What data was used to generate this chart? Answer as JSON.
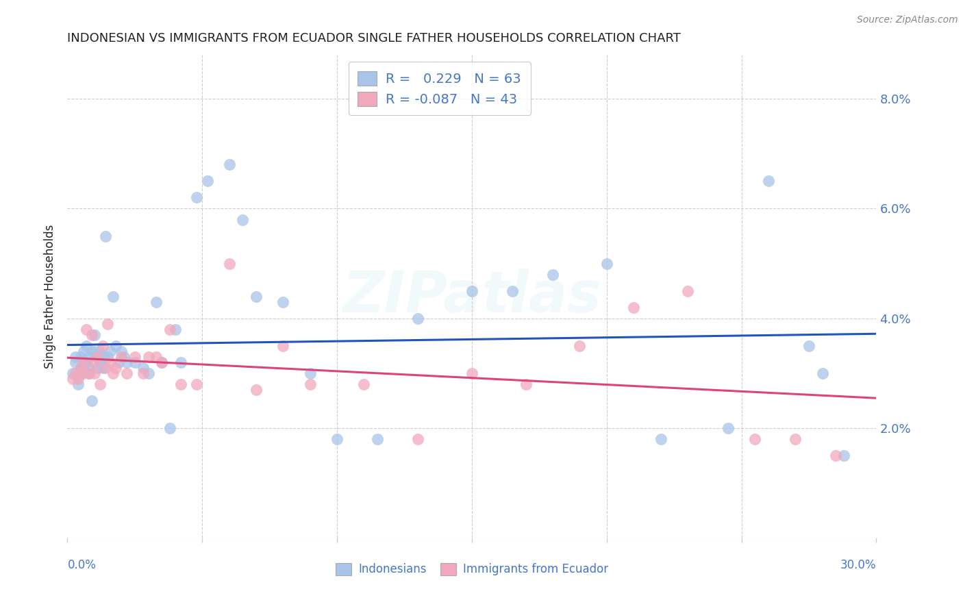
{
  "title": "INDONESIAN VS IMMIGRANTS FROM ECUADOR SINGLE FATHER HOUSEHOLDS CORRELATION CHART",
  "source": "Source: ZipAtlas.com",
  "ylabel": "Single Father Households",
  "yticks": [
    0.0,
    0.02,
    0.04,
    0.06,
    0.08
  ],
  "ytick_labels": [
    "",
    "2.0%",
    "4.0%",
    "6.0%",
    "8.0%"
  ],
  "xlim": [
    0.0,
    0.3
  ],
  "ylim": [
    0.0,
    0.088
  ],
  "blue_line_color": "#2255bb",
  "pink_line_color": "#dd4477",
  "blue_dot_color": "#a8c4e8",
  "pink_dot_color": "#f2a8bc",
  "background_color": "#ffffff",
  "grid_color": "#cccccc",
  "title_color": "#222222",
  "accent_color": "#4477cc",
  "watermark": "ZIPatlas",
  "footer_labels": [
    "Indonesians",
    "Immigrants from Ecuador"
  ],
  "legend_R1": "R = ",
  "legend_V1": " 0.229",
  "legend_N1_label": "  N = ",
  "legend_N1": "63",
  "legend_R2": "R = ",
  "legend_V2": "-0.087",
  "legend_N2_label": "  N = ",
  "legend_N2": "43",
  "blue_x": [
    0.002,
    0.003,
    0.003,
    0.004,
    0.005,
    0.005,
    0.005,
    0.006,
    0.006,
    0.006,
    0.007,
    0.007,
    0.008,
    0.008,
    0.008,
    0.009,
    0.009,
    0.01,
    0.01,
    0.011,
    0.011,
    0.012,
    0.012,
    0.012,
    0.013,
    0.013,
    0.014,
    0.015,
    0.016,
    0.017,
    0.018,
    0.019,
    0.02,
    0.021,
    0.022,
    0.025,
    0.028,
    0.03,
    0.033,
    0.035,
    0.038,
    0.04,
    0.042,
    0.048,
    0.052,
    0.06,
    0.065,
    0.07,
    0.08,
    0.09,
    0.1,
    0.115,
    0.13,
    0.15,
    0.165,
    0.18,
    0.2,
    0.22,
    0.245,
    0.26,
    0.275,
    0.28,
    0.288
  ],
  "blue_y": [
    0.03,
    0.032,
    0.033,
    0.028,
    0.03,
    0.033,
    0.031,
    0.032,
    0.034,
    0.031,
    0.032,
    0.035,
    0.03,
    0.033,
    0.031,
    0.025,
    0.034,
    0.034,
    0.037,
    0.031,
    0.033,
    0.032,
    0.034,
    0.033,
    0.031,
    0.033,
    0.055,
    0.033,
    0.034,
    0.044,
    0.035,
    0.032,
    0.034,
    0.033,
    0.032,
    0.032,
    0.031,
    0.03,
    0.043,
    0.032,
    0.02,
    0.038,
    0.032,
    0.062,
    0.065,
    0.068,
    0.058,
    0.044,
    0.043,
    0.03,
    0.018,
    0.018,
    0.04,
    0.045,
    0.045,
    0.048,
    0.05,
    0.018,
    0.02,
    0.065,
    0.035,
    0.03,
    0.015
  ],
  "pink_x": [
    0.002,
    0.003,
    0.004,
    0.005,
    0.006,
    0.006,
    0.007,
    0.008,
    0.009,
    0.01,
    0.01,
    0.011,
    0.012,
    0.013,
    0.014,
    0.015,
    0.016,
    0.017,
    0.018,
    0.02,
    0.022,
    0.025,
    0.028,
    0.03,
    0.033,
    0.035,
    0.038,
    0.042,
    0.048,
    0.06,
    0.07,
    0.08,
    0.09,
    0.11,
    0.13,
    0.15,
    0.17,
    0.19,
    0.21,
    0.23,
    0.255,
    0.27,
    0.285
  ],
  "pink_y": [
    0.029,
    0.03,
    0.029,
    0.031,
    0.032,
    0.03,
    0.038,
    0.03,
    0.037,
    0.03,
    0.032,
    0.033,
    0.028,
    0.035,
    0.031,
    0.039,
    0.032,
    0.03,
    0.031,
    0.033,
    0.03,
    0.033,
    0.03,
    0.033,
    0.033,
    0.032,
    0.038,
    0.028,
    0.028,
    0.05,
    0.027,
    0.035,
    0.028,
    0.028,
    0.018,
    0.03,
    0.028,
    0.035,
    0.042,
    0.045,
    0.018,
    0.018,
    0.015
  ]
}
